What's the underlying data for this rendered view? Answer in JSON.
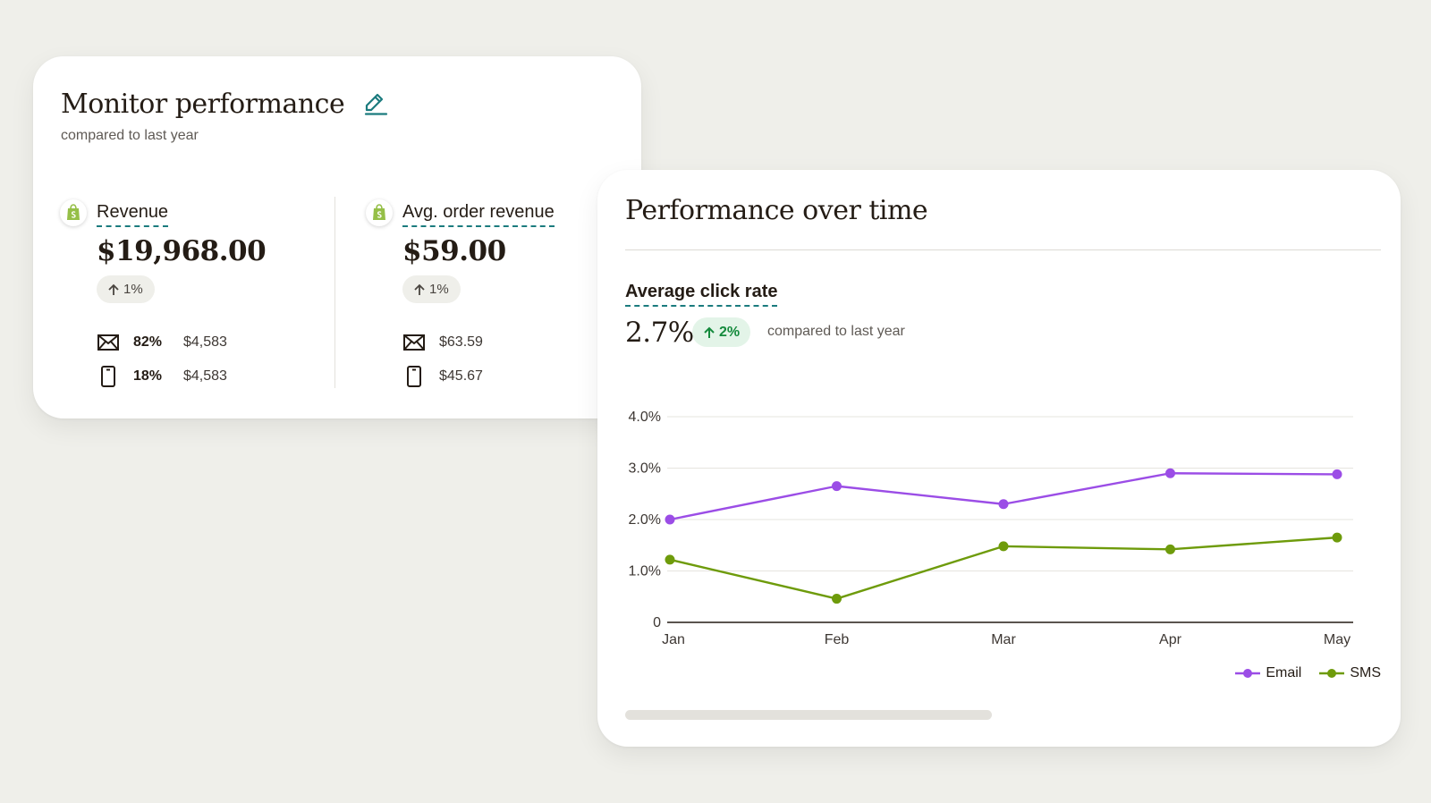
{
  "monitor": {
    "title": "Monitor performance",
    "subtitle": "compared to last year",
    "metrics": [
      {
        "label": "Revenue",
        "value": "$19,968.00",
        "delta": "1%",
        "rows": [
          {
            "icon": "envelope-icon",
            "pct": "82%",
            "amount": "$4,583"
          },
          {
            "icon": "phone-icon",
            "pct": "18%",
            "amount": "$4,583"
          }
        ]
      },
      {
        "label": "Avg. order revenue",
        "value": "$59.00",
        "delta": "1%",
        "rows": [
          {
            "icon": "envelope-icon",
            "amount": "$63.59"
          },
          {
            "icon": "phone-icon",
            "amount": "$45.67"
          }
        ]
      }
    ]
  },
  "performance": {
    "title": "Performance over time",
    "metric_label": "Average click rate",
    "metric_value": "2.7%",
    "delta": "2%",
    "comparison": "compared to last year"
  },
  "chart_data": {
    "type": "line",
    "x": [
      "Jan",
      "Feb",
      "Mar",
      "Apr",
      "May"
    ],
    "ylim": [
      0,
      4
    ],
    "yticks": [
      0,
      1,
      2,
      3,
      4
    ],
    "ytick_labels": [
      "0",
      "1.0%",
      "2.0%",
      "3.0%",
      "4.0%"
    ],
    "grid": true,
    "legend_position": "bottom-right",
    "series": [
      {
        "name": "Email",
        "color": "#9b4de6",
        "values": [
          2.0,
          2.65,
          2.3,
          2.9,
          2.88
        ]
      },
      {
        "name": "SMS",
        "color": "#6e9b0b",
        "values": [
          1.22,
          0.46,
          1.48,
          1.42,
          1.65
        ]
      }
    ]
  },
  "colors": {
    "accent_teal": "#1b7b7e",
    "positive_green": "#148a3c",
    "shopify_green": "#95bf47"
  }
}
